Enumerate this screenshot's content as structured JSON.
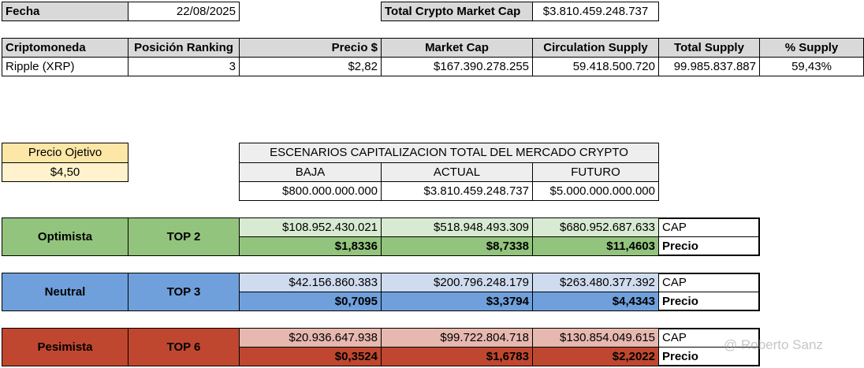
{
  "header": {
    "date_label": "Fecha",
    "date": "22/08/2025",
    "total_cap_label": "Total Crypto Market Cap",
    "total_cap": "$3.810.459.248.737"
  },
  "table": {
    "columns": [
      "Criptomoneda",
      "Posición Ranking",
      "Precio $",
      "Market Cap",
      "Circulation Supply",
      "Total Supply",
      "% Supply"
    ],
    "rows": [
      [
        "Ripple (XRP)",
        "3",
        "$2,82",
        "$167.390.278.255",
        "59.418.500.720",
        "99.985.837.887",
        "59,43%"
      ]
    ]
  },
  "target": {
    "label": "Precio Ojetivo",
    "value": "$4,50"
  },
  "scenarios": {
    "title": "ESCENARIOS CAPITALIZACION TOTAL DEL MERCADO CRYPTO",
    "columns": [
      "BAJA",
      "ACTUAL",
      "FUTURO"
    ],
    "values": [
      "$800.000.000.000",
      "$3.810.459.248.737",
      "$5.000.000.000.000"
    ]
  },
  "projections": [
    {
      "name": "Optimista",
      "rank": "TOP 2",
      "cap_label": "CAP",
      "cap": [
        "$108.952.430.021",
        "$518.948.493.309",
        "$680.952.687.633"
      ],
      "price_label": "Precio",
      "price": [
        "$1,8336",
        "$8,7338",
        "$11,4603"
      ]
    },
    {
      "name": "Neutral",
      "rank": "TOP 3",
      "cap_label": "CAP",
      "cap": [
        "$42.156.860.383",
        "$200.796.248.179",
        "$263.480.377.392"
      ],
      "price_label": "Precio",
      "price": [
        "$0,7095",
        "$3,3794",
        "$4,4343"
      ]
    },
    {
      "name": "Pesimista",
      "rank": "TOP 6",
      "cap_label": "CAP",
      "cap": [
        "$20.936.647.938",
        "$99.722.804.718",
        "$130.854.049.615"
      ],
      "price_label": "Precio",
      "price": [
        "$0,3524",
        "$1,6783",
        "$2,2022"
      ]
    }
  ],
  "watermark": "@ Roberto Sanz"
}
